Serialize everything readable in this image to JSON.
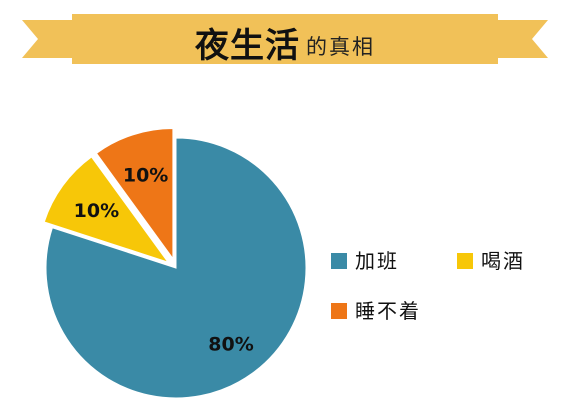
{
  "title": {
    "main": "夜生活",
    "sub": "的真相"
  },
  "colors": {
    "banner": "#F1C158",
    "banner_dark": "#D9A43C"
  },
  "chart_data": {
    "type": "pie",
    "exploded": true,
    "start": "12 o'clock, clockwise",
    "slices": [
      {
        "label": "加班",
        "value": 80,
        "display": "80%",
        "color": "#3A8AA6"
      },
      {
        "label": "喝酒",
        "value": 10,
        "display": "10%",
        "color": "#F7C708"
      },
      {
        "label": "睡不着",
        "value": 10,
        "display": "10%",
        "color": "#EE7617"
      }
    ],
    "legend": {
      "position": "right"
    }
  }
}
